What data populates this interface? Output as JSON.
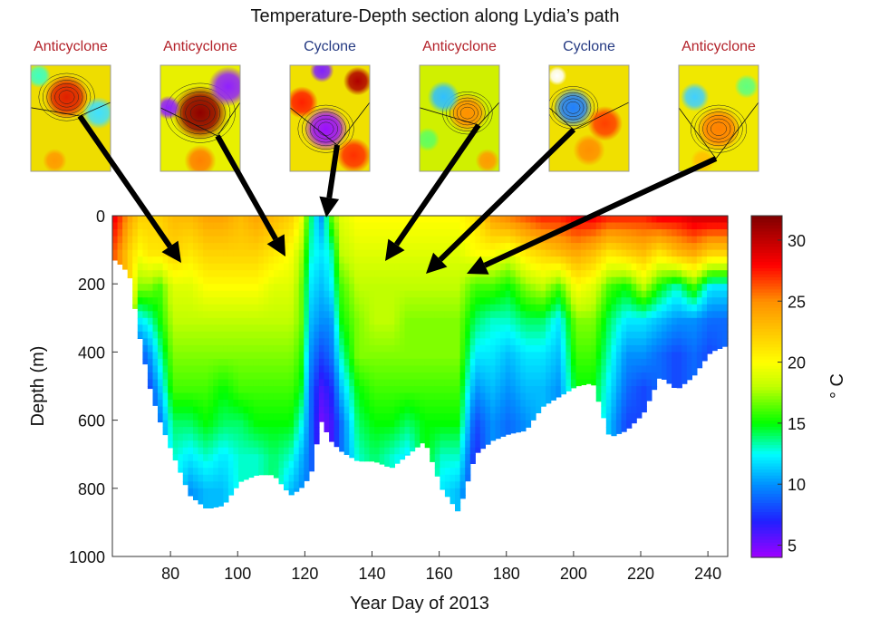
{
  "chart_data": {
    "type": "heatmap",
    "title": "Temperature-Depth section along Lydia’s path",
    "xlabel": "Year Day of 2013",
    "ylabel": "Depth (m)",
    "colorbar_label": "° C",
    "xlim": [
      62.7,
      245.9
    ],
    "ylim": [
      0,
      1000
    ],
    "y_reversed": true,
    "clim": [
      4,
      32
    ],
    "xticks": [
      80,
      100,
      120,
      140,
      160,
      180,
      200,
      220,
      240
    ],
    "yticks": [
      0,
      200,
      400,
      600,
      800,
      1000
    ],
    "colorbar_ticks": [
      5,
      10,
      15,
      20,
      25,
      30
    ],
    "colormap": [
      "#a000ff",
      "#2020ff",
      "#0090ff",
      "#00ffff",
      "#00ff00",
      "#c0ff00",
      "#ffff00",
      "#ff9000",
      "#ff0000",
      "#800000"
    ],
    "colormap_stops": [
      4,
      7,
      10,
      12.5,
      15,
      18,
      20,
      25,
      28,
      32
    ],
    "grid": false,
    "profile_depths_m": [
      0,
      100,
      200,
      300,
      400,
      500,
      600,
      700,
      800
    ],
    "profiles": [
      {
        "day": 63,
        "max_depth": 130,
        "temps": [
          28,
          26
        ]
      },
      {
        "day": 67,
        "max_depth": 170,
        "temps": [
          24,
          22
        ]
      },
      {
        "day": 70,
        "max_depth": 350,
        "temps": [
          22,
          20,
          17,
          12,
          8
        ]
      },
      {
        "day": 73,
        "max_depth": 500,
        "temps": [
          22,
          21,
          17,
          13,
          10,
          8
        ]
      },
      {
        "day": 76,
        "max_depth": 600,
        "temps": [
          22,
          21,
          16,
          15,
          13,
          11,
          9
        ]
      },
      {
        "day": 80,
        "max_depth": 700,
        "temps": [
          23,
          22,
          19,
          18,
          17,
          16,
          14,
          13
        ]
      },
      {
        "day": 85,
        "max_depth": 820,
        "temps": [
          23,
          21,
          19,
          18,
          17,
          16,
          14,
          12,
          10
        ]
      },
      {
        "day": 90,
        "max_depth": 860,
        "temps": [
          24,
          22,
          20,
          18,
          17,
          16,
          15,
          13,
          11
        ]
      },
      {
        "day": 95,
        "max_depth": 850,
        "temps": [
          24,
          22,
          20,
          18,
          17,
          15,
          14,
          12,
          11
        ]
      },
      {
        "day": 100,
        "max_depth": 780,
        "temps": [
          23,
          22,
          20,
          18,
          17,
          16,
          14,
          13
        ]
      },
      {
        "day": 105,
        "max_depth": 760,
        "temps": [
          24,
          22,
          20,
          18,
          17,
          16,
          15,
          13
        ]
      },
      {
        "day": 110,
        "max_depth": 760,
        "temps": [
          23,
          21,
          19,
          18,
          17,
          16,
          15,
          14
        ]
      },
      {
        "day": 115,
        "max_depth": 820,
        "temps": [
          22,
          20,
          19,
          18,
          17,
          16,
          15,
          13,
          11
        ]
      },
      {
        "day": 118,
        "max_depth": 800,
        "temps": [
          20,
          18,
          17,
          17,
          16,
          15,
          13,
          11,
          10
        ]
      },
      {
        "day": 121,
        "max_depth": 760,
        "temps": [
          14,
          13,
          12,
          11,
          10,
          9,
          9,
          9
        ]
      },
      {
        "day": 124,
        "max_depth": 600,
        "temps": [
          10,
          12,
          11,
          10,
          8,
          6,
          5
        ]
      },
      {
        "day": 127,
        "max_depth": 660,
        "temps": [
          16,
          13,
          12,
          10,
          9,
          7,
          6
        ]
      },
      {
        "day": 130,
        "max_depth": 690,
        "temps": [
          19,
          18,
          16,
          15,
          13,
          11,
          9
        ]
      },
      {
        "day": 135,
        "max_depth": 720,
        "temps": [
          20,
          19,
          18,
          17,
          17,
          15,
          14,
          13
        ]
      },
      {
        "day": 140,
        "max_depth": 720,
        "temps": [
          20,
          19,
          18,
          18,
          17,
          16,
          15,
          14
        ]
      },
      {
        "day": 145,
        "max_depth": 740,
        "temps": [
          20,
          19,
          18,
          18,
          17,
          16,
          15,
          13
        ]
      },
      {
        "day": 150,
        "max_depth": 700,
        "temps": [
          20,
          19,
          18,
          17,
          17,
          16,
          14,
          12
        ]
      },
      {
        "day": 155,
        "max_depth": 660,
        "temps": [
          20,
          19,
          18,
          17,
          17,
          16,
          15
        ]
      },
      {
        "day": 160,
        "max_depth": 800,
        "temps": [
          20,
          19,
          18,
          17,
          17,
          16,
          15,
          13,
          12
        ]
      },
      {
        "day": 165,
        "max_depth": 870,
        "temps": [
          20,
          19,
          18,
          17,
          17,
          16,
          15,
          13,
          11
        ]
      },
      {
        "day": 170,
        "max_depth": 700,
        "temps": [
          21,
          20,
          16,
          14,
          12,
          10,
          8,
          7
        ]
      },
      {
        "day": 175,
        "max_depth": 660,
        "temps": [
          24,
          20,
          16,
          13,
          12,
          11,
          10
        ]
      },
      {
        "day": 180,
        "max_depth": 640,
        "temps": [
          25,
          19,
          15,
          13,
          11,
          10,
          9
        ]
      },
      {
        "day": 185,
        "max_depth": 630,
        "temps": [
          26,
          21,
          17,
          14,
          12,
          11,
          10
        ]
      },
      {
        "day": 190,
        "max_depth": 560,
        "temps": [
          27,
          22,
          18,
          14,
          12,
          11
        ]
      },
      {
        "day": 195,
        "max_depth": 530,
        "temps": [
          27,
          23,
          16,
          12,
          11,
          10
        ]
      },
      {
        "day": 200,
        "max_depth": 500,
        "temps": [
          28,
          24,
          20,
          17,
          16,
          15
        ]
      },
      {
        "day": 205,
        "max_depth": 490,
        "temps": [
          28,
          23,
          19,
          17,
          16,
          15
        ]
      },
      {
        "day": 210,
        "max_depth": 650,
        "temps": [
          27,
          21,
          16,
          14,
          13,
          12,
          11
        ]
      },
      {
        "day": 215,
        "max_depth": 630,
        "temps": [
          27,
          22,
          15,
          12,
          10,
          9,
          8
        ]
      },
      {
        "day": 220,
        "max_depth": 580,
        "temps": [
          27,
          23,
          18,
          12,
          10,
          8
        ]
      },
      {
        "day": 225,
        "max_depth": 470,
        "temps": [
          28,
          21,
          15,
          11,
          9
        ]
      },
      {
        "day": 230,
        "max_depth": 510,
        "temps": [
          28,
          23,
          13,
          10,
          8,
          8
        ]
      },
      {
        "day": 235,
        "max_depth": 470,
        "temps": [
          29,
          24,
          16,
          10,
          9
        ]
      },
      {
        "day": 240,
        "max_depth": 400,
        "temps": [
          29,
          22,
          12,
          9,
          8
        ]
      },
      {
        "day": 245,
        "max_depth": 380,
        "temps": [
          29,
          22,
          12,
          9
        ]
      }
    ],
    "annotations": [
      {
        "label": "Anticyclone",
        "type": "anticyclone",
        "color": "#b3222a"
      },
      {
        "label": "Anticyclone",
        "type": "anticyclone",
        "color": "#b3222a"
      },
      {
        "label": "Cyclone",
        "type": "cyclone",
        "color": "#253a82"
      },
      {
        "label": "Anticyclone",
        "type": "anticyclone",
        "color": "#b3222a"
      },
      {
        "label": "Cyclone",
        "type": "cyclone",
        "color": "#253a82"
      },
      {
        "label": "Anticyclone",
        "type": "anticyclone",
        "color": "#b3222a"
      }
    ]
  }
}
